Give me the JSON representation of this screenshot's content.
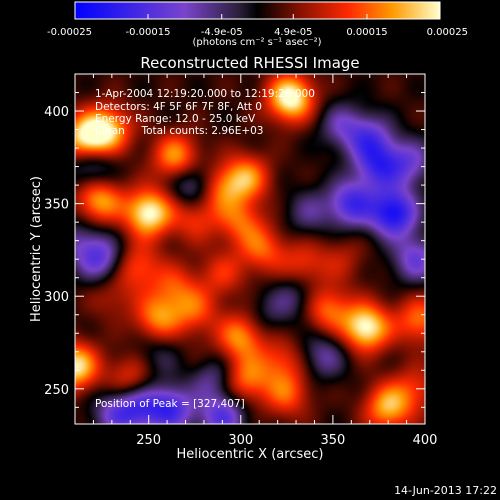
{
  "chart_data": {
    "type": "heatmap",
    "title": "Reconstructed RHESSI Image",
    "xlabel": "Heliocentric X (arcsec)",
    "ylabel": "Heliocentric Y (arcsec)",
    "xlim": [
      210,
      400
    ],
    "ylim": [
      231,
      420
    ],
    "xticks": [
      "250",
      "300",
      "350",
      "400"
    ],
    "xtick_values": [
      250,
      300,
      350,
      400
    ],
    "yticks": [
      "250",
      "300",
      "350",
      "400"
    ],
    "ytick_values": [
      250,
      300,
      350,
      400
    ],
    "colorbar": {
      "min": -0.00025,
      "max": 0.00025,
      "tick_labels": [
        "-0.00025",
        "-0.00015",
        "-4.9e-05",
        "4.9e-05",
        "0.00015",
        "0.00025"
      ],
      "tick_values": [
        -0.00025,
        -0.00015,
        -4.9e-05,
        4.9e-05,
        0.00015,
        0.00025
      ],
      "units": "(photons cm⁻² s⁻¹ asec⁻²)"
    },
    "annotations": {
      "time_range": "1-Apr-2004 12:19:20.000 to 12:19:26.000",
      "detectors": "Detectors: 4F 5F 6F 7F 8F, Att 0",
      "energy": "Energy Range: 12.0 - 25.0 keV",
      "method": "Clean     Total counts: 2.96E+03",
      "peak": "Position of Peak = [327,407]"
    },
    "peak_position": [
      327,
      407
    ],
    "features": [
      {
        "x": 327,
        "y": 407,
        "level": 0.00025
      },
      {
        "x": 216,
        "y": 385,
        "level": 0.00022
      },
      {
        "x": 228,
        "y": 390,
        "level": 0.00018
      },
      {
        "x": 223,
        "y": 352,
        "level": 0.00018
      },
      {
        "x": 250,
        "y": 345,
        "level": 0.00024
      },
      {
        "x": 265,
        "y": 375,
        "level": 0.00017
      },
      {
        "x": 288,
        "y": 358,
        "level": 0.00014
      },
      {
        "x": 303,
        "y": 364,
        "level": 0.00016
      },
      {
        "x": 275,
        "y": 342,
        "level": 0.0001
      },
      {
        "x": 300,
        "y": 340,
        "level": 0.00012
      },
      {
        "x": 312,
        "y": 325,
        "level": 0.00012
      },
      {
        "x": 244,
        "y": 316,
        "level": 0.00012
      },
      {
        "x": 264,
        "y": 305,
        "level": 0.0001
      },
      {
        "x": 290,
        "y": 312,
        "level": 9e-05
      },
      {
        "x": 255,
        "y": 288,
        "level": 0.00015
      },
      {
        "x": 275,
        "y": 292,
        "level": 0.00011
      },
      {
        "x": 347,
        "y": 293,
        "level": 0.00014
      },
      {
        "x": 368,
        "y": 283,
        "level": 0.00024
      },
      {
        "x": 397,
        "y": 287,
        "level": 0.00014
      },
      {
        "x": 210,
        "y": 262,
        "level": 0.00022
      },
      {
        "x": 300,
        "y": 278,
        "level": 0.00016
      },
      {
        "x": 303,
        "y": 255,
        "level": 0.00014
      },
      {
        "x": 322,
        "y": 265,
        "level": 0.0001
      },
      {
        "x": 325,
        "y": 247,
        "level": 0.00012
      },
      {
        "x": 240,
        "y": 255,
        "level": 0.00011
      },
      {
        "x": 280,
        "y": 262,
        "level": 8e-05
      },
      {
        "x": 380,
        "y": 240,
        "level": 0.00018
      },
      {
        "x": 395,
        "y": 250,
        "level": 9e-05
      },
      {
        "x": 334,
        "y": 317,
        "level": 0.0001
      },
      {
        "x": 265,
        "y": 242,
        "level": 8e-05
      },
      {
        "x": 355,
        "y": 320,
        "level": 6e-05
      },
      {
        "x": 230,
        "y": 300,
        "level": 6e-05
      },
      {
        "x": 219,
        "y": 370,
        "level": -0.00012
      },
      {
        "x": 224,
        "y": 320,
        "level": -0.00015
      },
      {
        "x": 263,
        "y": 240,
        "level": -0.00025
      },
      {
        "x": 245,
        "y": 240,
        "level": -0.00015
      },
      {
        "x": 383,
        "y": 345,
        "level": -0.00024
      },
      {
        "x": 375,
        "y": 370,
        "level": -0.00016
      },
      {
        "x": 360,
        "y": 350,
        "level": -0.00018
      },
      {
        "x": 370,
        "y": 385,
        "level": -0.00014
      },
      {
        "x": 392,
        "y": 372,
        "level": -0.00012
      },
      {
        "x": 283,
        "y": 258,
        "level": -0.00015
      },
      {
        "x": 275,
        "y": 360,
        "level": -0.00014
      },
      {
        "x": 232,
        "y": 237,
        "level": -0.00012
      },
      {
        "x": 290,
        "y": 235,
        "level": -0.00016
      },
      {
        "x": 330,
        "y": 300,
        "level": -8e-05
      },
      {
        "x": 345,
        "y": 268,
        "level": -0.0001
      },
      {
        "x": 395,
        "y": 320,
        "level": -0.00014
      },
      {
        "x": 337,
        "y": 345,
        "level": -8e-05
      },
      {
        "x": 355,
        "y": 392,
        "level": -0.0001
      },
      {
        "x": 212,
        "y": 330,
        "level": -8e-05
      },
      {
        "x": 255,
        "y": 268,
        "level": -6e-05
      },
      {
        "x": 315,
        "y": 290,
        "level": -5e-05
      }
    ],
    "grid": false
  },
  "footer": {
    "date": "14-Jun-2013 17:22"
  }
}
